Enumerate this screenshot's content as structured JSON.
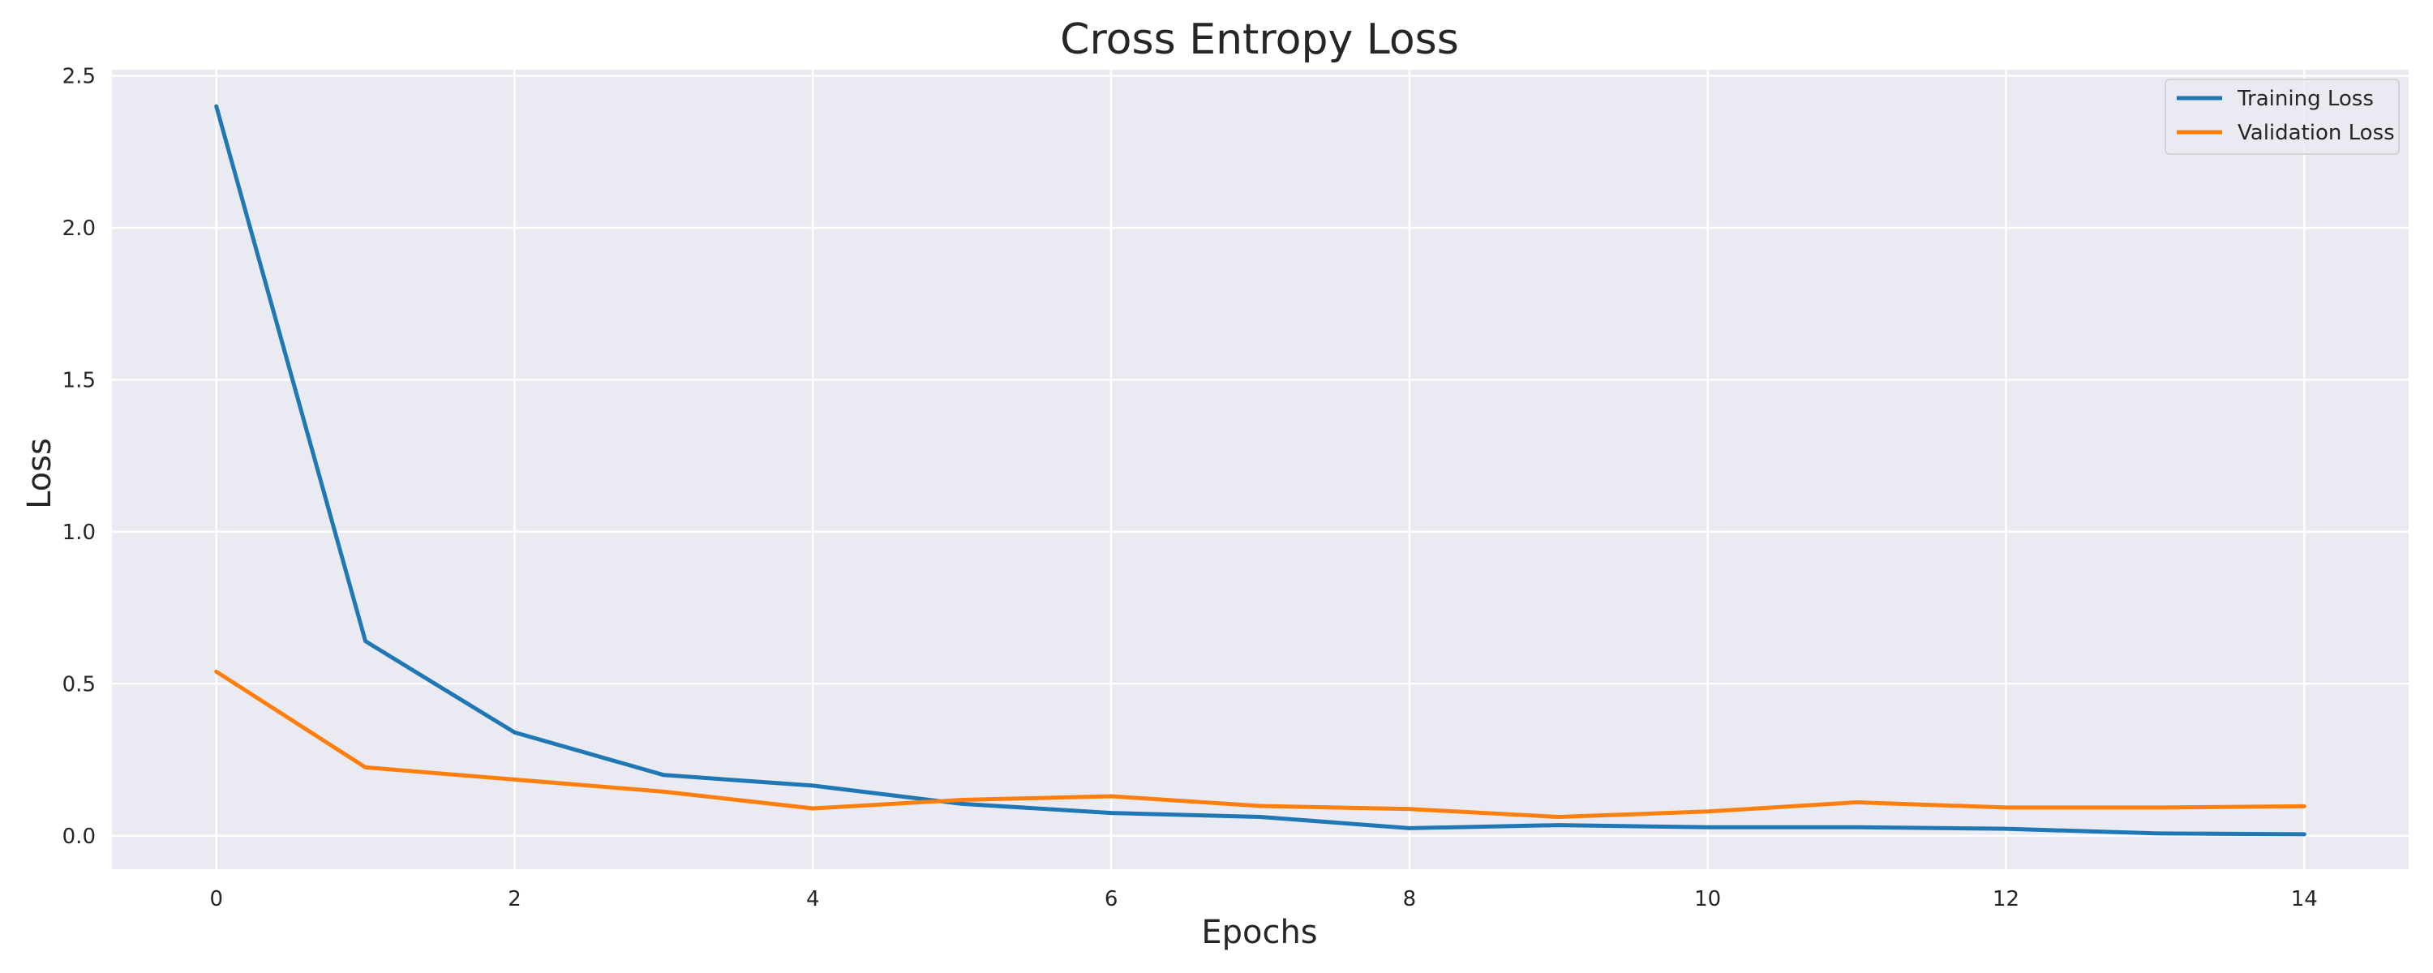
{
  "chart_data": {
    "type": "line",
    "title": "Cross Entropy Loss",
    "xlabel": "Epochs",
    "ylabel": "Loss",
    "xlim": [
      -0.7,
      14.7
    ],
    "ylim": [
      -0.11,
      2.52
    ],
    "xticks": [
      0,
      2,
      4,
      6,
      8,
      10,
      12,
      14
    ],
    "xtick_labels": [
      "0",
      "2",
      "4",
      "6",
      "8",
      "10",
      "12",
      "14"
    ],
    "yticks": [
      0.0,
      0.5,
      1.0,
      1.5,
      2.0,
      2.5
    ],
    "ytick_labels": [
      "0.0",
      "0.5",
      "1.0",
      "1.5",
      "2.0",
      "2.5"
    ],
    "grid": true,
    "background": "#EAEAF2",
    "grid_color": "#FFFFFF",
    "legend_position": "top-right",
    "x": [
      0,
      1,
      2,
      3,
      4,
      5,
      6,
      7,
      8,
      9,
      10,
      11,
      12,
      13,
      14
    ],
    "series": [
      {
        "name": "Training Loss",
        "color": "#1F77B4",
        "values": [
          2.4,
          0.64,
          0.34,
          0.2,
          0.165,
          0.105,
          0.075,
          0.062,
          0.025,
          0.035,
          0.028,
          0.028,
          0.023,
          0.008,
          0.005
        ]
      },
      {
        "name": "Validation Loss",
        "color": "#FF7F0E",
        "values": [
          0.54,
          0.225,
          0.185,
          0.145,
          0.09,
          0.118,
          0.13,
          0.098,
          0.088,
          0.062,
          0.08,
          0.11,
          0.093,
          0.093,
          0.097
        ]
      }
    ]
  }
}
